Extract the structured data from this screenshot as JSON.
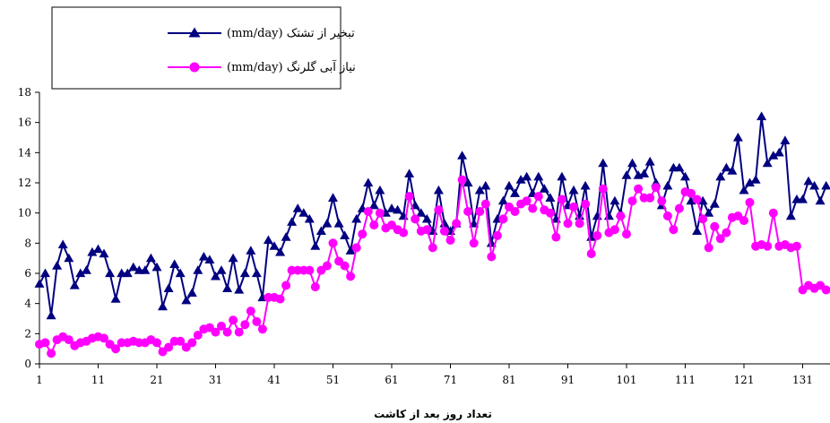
{
  "chart_data": {
    "type": "line",
    "title": "",
    "xlabel": "تعداد روز بعد از کاشت",
    "ylabel": "",
    "ylim": [
      0,
      18
    ],
    "yticks": [
      0,
      2,
      4,
      6,
      8,
      10,
      12,
      14,
      16,
      18
    ],
    "xlim": [
      1,
      136
    ],
    "xticks": [
      1,
      11,
      21,
      31,
      41,
      51,
      61,
      71,
      81,
      91,
      101,
      111,
      121,
      131
    ],
    "grid": false,
    "legend_position": "top-left",
    "x": [
      1,
      2,
      3,
      4,
      5,
      6,
      7,
      8,
      9,
      10,
      11,
      12,
      13,
      14,
      15,
      16,
      17,
      18,
      19,
      20,
      21,
      22,
      23,
      24,
      25,
      26,
      27,
      28,
      29,
      30,
      31,
      32,
      33,
      34,
      35,
      36,
      37,
      38,
      39,
      40,
      41,
      42,
      43,
      44,
      45,
      46,
      47,
      48,
      49,
      50,
      51,
      52,
      53,
      54,
      55,
      56,
      57,
      58,
      59,
      60,
      61,
      62,
      63,
      64,
      65,
      66,
      67,
      68,
      69,
      70,
      71,
      72,
      73,
      74,
      75,
      76,
      77,
      78,
      79,
      80,
      81,
      82,
      83,
      84,
      85,
      86,
      87,
      88,
      89,
      90,
      91,
      92,
      93,
      94,
      95,
      96,
      97,
      98,
      99,
      100,
      101,
      102,
      103,
      104,
      105,
      106,
      107,
      108,
      109,
      110,
      111,
      112,
      113,
      114,
      115,
      116,
      117,
      118,
      119,
      120,
      121,
      122,
      123,
      124,
      125,
      126,
      127,
      128,
      129,
      130,
      131,
      132,
      133,
      134,
      135,
      136
    ],
    "series": [
      {
        "name": "تبخیر از تشتک (mm/day)",
        "color": "#000080",
        "marker": "triangle",
        "values": [
          5.3,
          6.0,
          3.2,
          6.5,
          7.9,
          7.0,
          5.2,
          6.0,
          6.2,
          7.4,
          7.6,
          7.3,
          6.0,
          4.3,
          6.0,
          6.0,
          6.4,
          6.2,
          6.2,
          7.0,
          6.4,
          3.8,
          5.0,
          6.6,
          6.0,
          4.2,
          4.7,
          6.2,
          7.1,
          6.9,
          5.8,
          6.2,
          5.0,
          7.0,
          4.9,
          6.0,
          7.5,
          6.0,
          4.4,
          8.2,
          7.8,
          7.4,
          8.4,
          9.4,
          10.3,
          10.0,
          9.6,
          7.8,
          8.8,
          9.3,
          11.0,
          9.3,
          8.5,
          7.5,
          9.6,
          10.3,
          12.0,
          10.5,
          11.5,
          10.0,
          10.3,
          10.2,
          9.8,
          12.6,
          10.5,
          10.0,
          9.6,
          8.8,
          11.5,
          9.3,
          8.8,
          9.3,
          13.8,
          12.0,
          9.3,
          11.5,
          11.8,
          8.0,
          9.6,
          10.8,
          11.8,
          11.3,
          12.2,
          12.4,
          11.3,
          12.4,
          11.6,
          11.0,
          9.6,
          12.4,
          10.5,
          11.5,
          9.8,
          11.8,
          8.4,
          9.8,
          13.3,
          9.8,
          10.8,
          10.0,
          12.5,
          13.3,
          12.5,
          12.6,
          13.4,
          12.0,
          10.5,
          11.8,
          13.0,
          13.0,
          12.4,
          10.8,
          8.8,
          10.8,
          10.0,
          10.6,
          12.4,
          13.0,
          12.8,
          15.0,
          11.5,
          12.0,
          12.2,
          16.4,
          13.3,
          13.8,
          14.0,
          14.8,
          9.8,
          10.9,
          10.9,
          12.1,
          11.8,
          10.8,
          11.8,
          12.0
        ]
      },
      {
        "name": "نیاز آبی گلرنگ (mm/day)",
        "color": "#ff00ff",
        "marker": "circle",
        "values": [
          1.3,
          1.4,
          0.7,
          1.6,
          1.8,
          1.6,
          1.2,
          1.4,
          1.5,
          1.7,
          1.8,
          1.7,
          1.3,
          1.0,
          1.4,
          1.4,
          1.5,
          1.4,
          1.4,
          1.6,
          1.4,
          0.8,
          1.1,
          1.5,
          1.5,
          1.1,
          1.4,
          1.9,
          2.3,
          2.4,
          2.1,
          2.5,
          2.1,
          2.9,
          2.1,
          2.6,
          3.5,
          2.8,
          2.3,
          4.4,
          4.4,
          4.3,
          5.2,
          6.2,
          6.2,
          6.2,
          6.2,
          5.1,
          6.2,
          6.5,
          8.0,
          6.8,
          6.5,
          5.8,
          7.7,
          8.6,
          10.1,
          9.2,
          10.0,
          9.0,
          9.2,
          8.9,
          8.7,
          11.1,
          9.6,
          8.8,
          8.9,
          7.7,
          10.2,
          8.8,
          8.2,
          9.3,
          12.2,
          10.1,
          8.0,
          10.1,
          10.6,
          7.1,
          8.5,
          9.6,
          10.4,
          10.1,
          10.6,
          10.8,
          10.3,
          11.1,
          10.2,
          10.0,
          8.4,
          10.9,
          9.3,
          10.4,
          9.3,
          10.6,
          7.3,
          8.5,
          11.6,
          8.7,
          8.9,
          9.8,
          8.6,
          10.8,
          11.6,
          11.0,
          11.0,
          11.7,
          10.8,
          9.8,
          8.9,
          10.3,
          11.4,
          11.3,
          10.9,
          9.6,
          7.7,
          9.1,
          8.3,
          8.7,
          9.7,
          9.8,
          9.5,
          10.7,
          7.8,
          7.9,
          7.8,
          10.0,
          7.8,
          7.9,
          7.7,
          7.8,
          4.9,
          5.2,
          5.0,
          5.2,
          4.9,
          5.2
        ]
      }
    ]
  }
}
